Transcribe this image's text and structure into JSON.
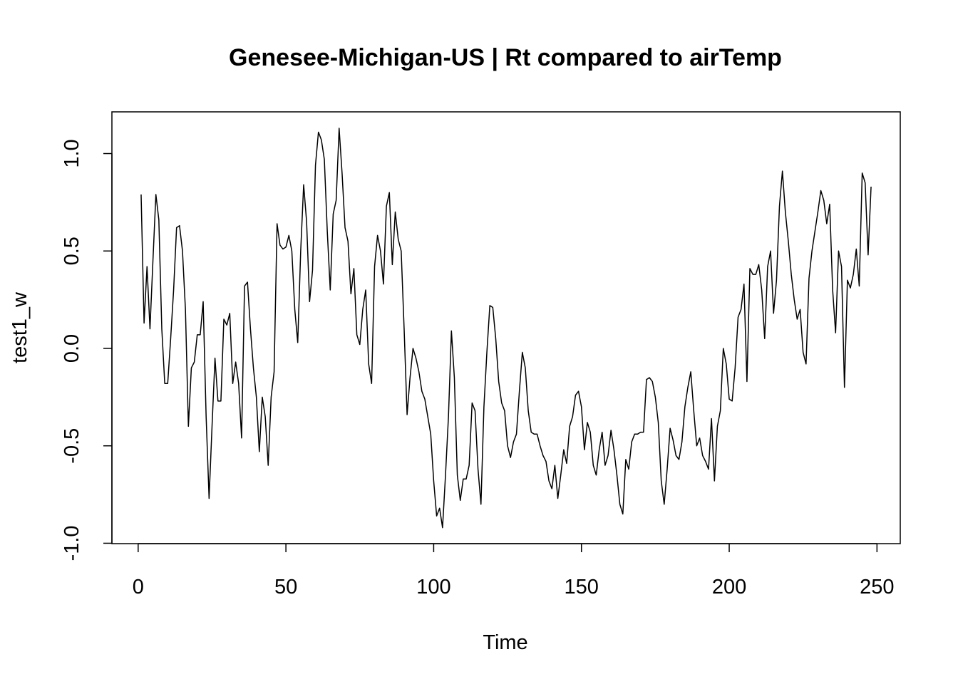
{
  "chart_data": {
    "type": "line",
    "title": "Genesee-Michigan-US | Rt compared to airTemp",
    "xlabel": "Time",
    "ylabel": "test1_w",
    "color": "#000000",
    "xlim": [
      -8.88,
      257.88
    ],
    "ylim": [
      -1.002,
      1.214
    ],
    "xticks": [
      0,
      50,
      100,
      150,
      200,
      250
    ],
    "yticks": [
      {
        "value": -1,
        "label": "-1.0"
      },
      -0.5,
      {
        "value": 0,
        "label": "0.0"
      },
      0.5,
      {
        "value": 1,
        "label": "1.0"
      }
    ],
    "x": [
      1,
      2,
      3,
      4,
      5,
      6,
      7,
      8,
      9,
      10,
      11,
      12,
      13,
      14,
      15,
      16,
      17,
      18,
      19,
      20,
      21,
      22,
      23,
      24,
      25,
      26,
      27,
      28,
      29,
      30,
      31,
      32,
      33,
      34,
      35,
      36,
      37,
      38,
      39,
      40,
      41,
      42,
      43,
      44,
      45,
      46,
      47,
      48,
      49,
      50,
      51,
      52,
      53,
      54,
      55,
      56,
      57,
      58,
      59,
      60,
      61,
      62,
      63,
      64,
      65,
      66,
      67,
      68,
      69,
      70,
      71,
      72,
      73,
      74,
      75,
      76,
      77,
      78,
      79,
      80,
      81,
      82,
      83,
      84,
      85,
      86,
      87,
      88,
      89,
      90,
      91,
      92,
      93,
      94,
      95,
      96,
      97,
      98,
      99,
      100,
      101,
      102,
      103,
      104,
      105,
      106,
      107,
      108,
      109,
      110,
      111,
      112,
      113,
      114,
      115,
      116,
      117,
      118,
      119,
      120,
      121,
      122,
      123,
      124,
      125,
      126,
      127,
      128,
      129,
      130,
      131,
      132,
      133,
      134,
      135,
      136,
      137,
      138,
      139,
      140,
      141,
      142,
      143,
      144,
      145,
      146,
      147,
      148,
      149,
      150,
      151,
      152,
      153,
      154,
      155,
      156,
      157,
      158,
      159,
      160,
      161,
      162,
      163,
      164,
      165,
      166,
      167,
      168,
      169,
      170,
      171,
      172,
      173,
      174,
      175,
      176,
      177,
      178,
      179,
      180,
      181,
      182,
      183,
      184,
      185,
      186,
      187,
      188,
      189,
      190,
      191,
      192,
      193,
      194,
      195,
      196,
      197,
      198,
      199,
      200,
      201,
      202,
      203,
      204,
      205,
      206,
      207,
      208,
      209,
      210,
      211,
      212,
      213,
      214,
      215,
      216,
      217,
      218,
      219,
      220,
      221,
      222,
      223,
      224,
      225,
      226,
      227,
      228,
      229,
      230,
      231,
      232,
      233,
      234,
      235,
      236,
      237,
      238,
      239,
      240,
      241,
      242,
      243,
      244,
      245,
      246,
      247,
      248
    ],
    "values": [
      0.79,
      0.13,
      0.42,
      0.1,
      0.45,
      0.79,
      0.66,
      0.1,
      -0.18,
      -0.18,
      0.05,
      0.3,
      0.62,
      0.63,
      0.5,
      0.2,
      -0.4,
      -0.1,
      -0.07,
      0.07,
      0.07,
      0.24,
      -0.35,
      -0.77,
      -0.4,
      -0.05,
      -0.27,
      -0.27,
      0.15,
      0.12,
      0.18,
      -0.18,
      -0.07,
      -0.18,
      -0.46,
      0.32,
      0.34,
      0.1,
      -0.1,
      -0.25,
      -0.53,
      -0.25,
      -0.35,
      -0.6,
      -0.25,
      -0.12,
      0.64,
      0.53,
      0.51,
      0.52,
      0.58,
      0.5,
      0.2,
      0.03,
      0.5,
      0.84,
      0.65,
      0.24,
      0.4,
      0.94,
      1.11,
      1.07,
      0.97,
      0.6,
      0.3,
      0.69,
      0.76,
      1.13,
      0.9,
      0.62,
      0.55,
      0.28,
      0.41,
      0.07,
      0.02,
      0.2,
      0.3,
      -0.08,
      -0.18,
      0.42,
      0.58,
      0.5,
      0.33,
      0.73,
      0.8,
      0.43,
      0.7,
      0.56,
      0.5,
      0.1,
      -0.34,
      -0.15,
      0.0,
      -0.05,
      -0.12,
      -0.22,
      -0.26,
      -0.35,
      -0.44,
      -0.68,
      -0.86,
      -0.82,
      -0.92,
      -0.65,
      -0.35,
      0.09,
      -0.15,
      -0.65,
      -0.78,
      -0.67,
      -0.67,
      -0.6,
      -0.28,
      -0.32,
      -0.62,
      -0.8,
      -0.3,
      -0.02,
      0.22,
      0.21,
      0.05,
      -0.17,
      -0.28,
      -0.32,
      -0.5,
      -0.56,
      -0.48,
      -0.44,
      -0.22,
      -0.02,
      -0.1,
      -0.32,
      -0.43,
      -0.44,
      -0.44,
      -0.5,
      -0.55,
      -0.58,
      -0.68,
      -0.72,
      -0.6,
      -0.77,
      -0.65,
      -0.52,
      -0.59,
      -0.4,
      -0.35,
      -0.24,
      -0.22,
      -0.3,
      -0.52,
      -0.38,
      -0.43,
      -0.6,
      -0.65,
      -0.52,
      -0.43,
      -0.6,
      -0.55,
      -0.42,
      -0.52,
      -0.65,
      -0.8,
      -0.85,
      -0.57,
      -0.62,
      -0.48,
      -0.44,
      -0.44,
      -0.43,
      -0.43,
      -0.16,
      -0.15,
      -0.17,
      -0.25,
      -0.38,
      -0.68,
      -0.8,
      -0.62,
      -0.41,
      -0.47,
      -0.55,
      -0.57,
      -0.48,
      -0.3,
      -0.2,
      -0.12,
      -0.32,
      -0.5,
      -0.46,
      -0.55,
      -0.58,
      -0.62,
      -0.36,
      -0.68,
      -0.4,
      -0.32,
      0.0,
      -0.08,
      -0.26,
      -0.27,
      -0.1,
      0.16,
      0.2,
      0.33,
      -0.17,
      0.41,
      0.38,
      0.38,
      0.43,
      0.3,
      0.05,
      0.42,
      0.5,
      0.18,
      0.35,
      0.73,
      0.91,
      0.7,
      0.55,
      0.38,
      0.25,
      0.15,
      0.2,
      -0.02,
      -0.08,
      0.36,
      0.5,
      0.6,
      0.7,
      0.81,
      0.76,
      0.64,
      0.74,
      0.3,
      0.08,
      0.5,
      0.42,
      -0.2,
      0.35,
      0.31,
      0.38,
      0.51,
      0.32,
      0.9,
      0.85,
      0.48,
      0.83
    ]
  }
}
